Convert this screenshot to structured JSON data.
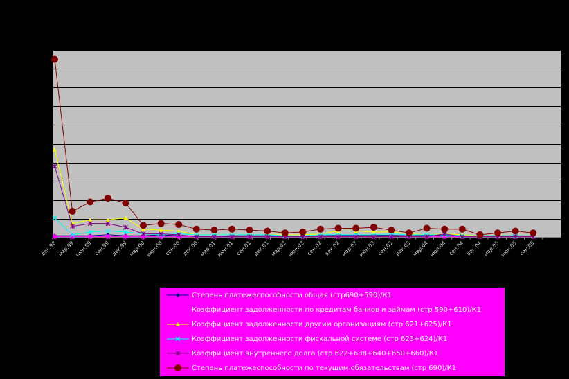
{
  "chart_data": {
    "type": "line",
    "title": "",
    "xlabel": "",
    "ylabel": "",
    "grid": true,
    "legend_position": "bottom",
    "categories": [
      "декабрь 1998",
      "март 1999",
      "июнь 1999",
      "сентябрь 1999",
      "декабрь 1999",
      "март 2000",
      "июнь 2000",
      "сентябрь 2000",
      "декабрь 2000",
      "март 2001",
      "июнь 2001",
      "сентябрь 2001",
      "декабрь 2001",
      "март 2002",
      "июнь 2002",
      "сентябрь 2002",
      "декабрь 2002",
      "март 2003",
      "июнь 2003",
      "сентябрь 2003",
      "декабрь 2003",
      "март 2004",
      "июнь 2004",
      "сентябрь 2004",
      "декабрь 2004",
      "март 2005",
      "июнь 2005",
      "сентябрь 2005"
    ],
    "x_tick_labels": [
      "дек.98",
      "мар.99",
      "июн.99",
      "сен.99",
      "дек.99",
      "мар.00",
      "июн.00",
      "сен.00",
      "дек.00",
      "мар.01",
      "июн.01",
      "сен.01",
      "дек.01",
      "мар.02",
      "июн.02",
      "сен.02",
      "дек.02",
      "мар.03",
      "июн.03",
      "сен.03",
      "дек.03",
      "мар.04",
      "июн.04",
      "сен.04",
      "дек.04",
      "мар.05",
      "июн.05",
      "сен.05"
    ],
    "ylim": [
      0,
      10
    ],
    "series": [
      {
        "name": "Степень платежеспособности общая (стр690+590)/К1",
        "color": "#000080",
        "marker": "diamond",
        "values": [
          0.1,
          0.1,
          0.1,
          0.15,
          0.1,
          0.1,
          0.15,
          0.1,
          0.08,
          0.08,
          0.1,
          0.1,
          0.1,
          0.1,
          0.08,
          0.1,
          0.12,
          0.12,
          0.12,
          0.12,
          0.1,
          0.12,
          0.12,
          0.1,
          0.1,
          0.1,
          0.1,
          0.1
        ]
      },
      {
        "name": "Коэффициент задолженности по кредитам банков и займам (стр 590+610)/К1",
        "color": "#ff00ff",
        "marker": "square",
        "values": [
          0.05,
          0.05,
          0.05,
          0.05,
          0.05,
          0.05,
          0.05,
          0.05,
          0.05,
          0.05,
          0.05,
          0.05,
          0.05,
          0.05,
          0.05,
          0.05,
          0.05,
          0.05,
          0.05,
          0.05,
          0.05,
          0.05,
          0.05,
          0.05,
          0.05,
          0.05,
          0.05,
          0.05
        ]
      },
      {
        "name": "Коэффициент задолженности другим организациям (стр 621+625)/К1",
        "color": "#ffff00",
        "marker": "triangle",
        "values": [
          4.7,
          0.75,
          0.95,
          0.95,
          1.05,
          0.45,
          0.4,
          0.35,
          0.15,
          0.15,
          0.15,
          0.15,
          0.15,
          0.15,
          0.15,
          0.2,
          0.35,
          0.35,
          0.3,
          0.3,
          0.2,
          0.15,
          0.2,
          0.15,
          0.1,
          0.1,
          0.1,
          0.1
        ]
      },
      {
        "name": "Коэффициент задолженности фискальной системе (стр 623+624)/К1",
        "color": "#00ffff",
        "marker": "x",
        "values": [
          1.05,
          0.15,
          0.3,
          0.35,
          0.3,
          0.2,
          0.15,
          0.2,
          0.15,
          0.15,
          0.15,
          0.15,
          0.15,
          0.1,
          0.1,
          0.15,
          0.15,
          0.15,
          0.15,
          0.2,
          0.15,
          0.15,
          0.15,
          0.1,
          0.1,
          0.1,
          0.1,
          0.1
        ]
      },
      {
        "name": "Коэффициент внутреннего долга (стр 622+638+640+650+660)/К1",
        "color": "#800080",
        "marker": "star",
        "values": [
          3.8,
          0.6,
          0.75,
          0.75,
          0.55,
          0.2,
          0.2,
          0.15,
          0.05,
          0.05,
          0.05,
          0.05,
          0.05,
          0.05,
          0.05,
          0.05,
          0.05,
          0.05,
          0.05,
          0.05,
          0.05,
          0.05,
          0.2,
          0.05,
          0.05,
          0.05,
          0.05,
          0.05
        ]
      },
      {
        "name": "Степень платежеспособности по текущим обязательствам (стр 690)/К1",
        "color": "#800000",
        "marker": "circle",
        "values": [
          9.5,
          1.4,
          1.9,
          2.1,
          1.85,
          0.65,
          0.75,
          0.7,
          0.45,
          0.4,
          0.45,
          0.4,
          0.35,
          0.25,
          0.3,
          0.45,
          0.5,
          0.5,
          0.55,
          0.4,
          0.25,
          0.5,
          0.45,
          0.45,
          0.15,
          0.25,
          0.35,
          0.25
        ]
      }
    ]
  }
}
